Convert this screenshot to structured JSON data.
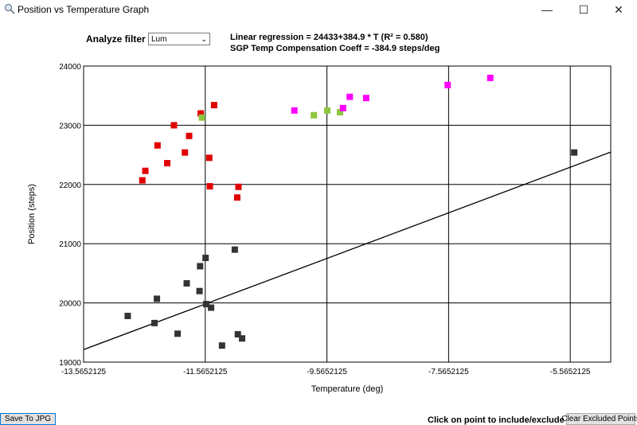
{
  "window": {
    "title": "Position vs Temperature Graph",
    "minimize": "—",
    "maximize": "☐",
    "close": "✕",
    "icon": "magnifier-icon"
  },
  "filter": {
    "label": "Analyze filter",
    "value": "Lum"
  },
  "header": {
    "regression": "Linear regression = 24433+384.9 * T  (R² = 0.580)",
    "coefficient": "SGP Temp Compensation Coeff = -384.9 steps/deg"
  },
  "footer": {
    "save_label": "Save To JPG",
    "hint": "Click on point to include/exclude it",
    "clear_label": "Clear Excluded Points"
  },
  "chart_data": {
    "type": "scatter",
    "title": "",
    "xlabel": "Temperature (deg)",
    "ylabel": "Position (steps)",
    "xlim": [
      -13.5652125,
      -4.9
    ],
    "ylim": [
      19000,
      24000
    ],
    "x_ticks": [
      "-13.5652125",
      "-11.5652125",
      "-9.5652125",
      "-7.5652125",
      "-5.5652125"
    ],
    "y_ticks": [
      "19000",
      "20000",
      "21000",
      "22000",
      "23000",
      "24000"
    ],
    "grid": true,
    "regression_line": {
      "intercept": 24433,
      "slope": 384.9
    },
    "colors": {
      "excluded": "#333333",
      "red": "#e00000",
      "green": "#8fc63f",
      "magenta": "#ff00ff",
      "line": "#000000",
      "grid": "#000000"
    },
    "points": [
      {
        "x": -12.6,
        "y": 22070,
        "color": "red"
      },
      {
        "x": -12.55,
        "y": 22230,
        "color": "red"
      },
      {
        "x": -12.35,
        "y": 22660,
        "color": "red"
      },
      {
        "x": -12.19,
        "y": 22360,
        "color": "red"
      },
      {
        "x": -12.08,
        "y": 23000,
        "color": "red"
      },
      {
        "x": -11.9,
        "y": 22540,
        "color": "red"
      },
      {
        "x": -11.83,
        "y": 22820,
        "color": "red"
      },
      {
        "x": -11.64,
        "y": 23200,
        "color": "red"
      },
      {
        "x": -11.5,
        "y": 22450,
        "color": "red"
      },
      {
        "x": -11.49,
        "y": 21970,
        "color": "red"
      },
      {
        "x": -11.42,
        "y": 23340,
        "color": "red"
      },
      {
        "x": -11.02,
        "y": 21960,
        "color": "red"
      },
      {
        "x": -11.04,
        "y": 21780,
        "color": "red"
      },
      {
        "x": -11.62,
        "y": 23130,
        "color": "green"
      },
      {
        "x": -9.78,
        "y": 23170,
        "color": "green"
      },
      {
        "x": -9.56,
        "y": 23250,
        "color": "green"
      },
      {
        "x": -9.35,
        "y": 23220,
        "color": "green"
      },
      {
        "x": -10.1,
        "y": 23250,
        "color": "magenta"
      },
      {
        "x": -9.3,
        "y": 23290,
        "color": "magenta"
      },
      {
        "x": -9.19,
        "y": 23480,
        "color": "magenta"
      },
      {
        "x": -8.92,
        "y": 23460,
        "color": "magenta"
      },
      {
        "x": -7.58,
        "y": 23680,
        "color": "magenta"
      },
      {
        "x": -6.88,
        "y": 23800,
        "color": "magenta"
      },
      {
        "x": -12.84,
        "y": 19780,
        "color": "excluded"
      },
      {
        "x": -12.4,
        "y": 19660,
        "color": "excluded"
      },
      {
        "x": -12.36,
        "y": 20070,
        "color": "excluded"
      },
      {
        "x": -12.02,
        "y": 19480,
        "color": "excluded"
      },
      {
        "x": -11.87,
        "y": 20330,
        "color": "excluded"
      },
      {
        "x": -11.65,
        "y": 20620,
        "color": "excluded"
      },
      {
        "x": -11.66,
        "y": 20200,
        "color": "excluded"
      },
      {
        "x": -11.56,
        "y": 20760,
        "color": "excluded"
      },
      {
        "x": -11.55,
        "y": 19980,
        "color": "excluded"
      },
      {
        "x": -11.47,
        "y": 19920,
        "color": "excluded"
      },
      {
        "x": -11.29,
        "y": 19280,
        "color": "excluded"
      },
      {
        "x": -11.08,
        "y": 20900,
        "color": "excluded"
      },
      {
        "x": -11.03,
        "y": 19470,
        "color": "excluded"
      },
      {
        "x": -10.96,
        "y": 19400,
        "color": "excluded"
      },
      {
        "x": -5.5,
        "y": 22540,
        "color": "excluded"
      }
    ]
  }
}
